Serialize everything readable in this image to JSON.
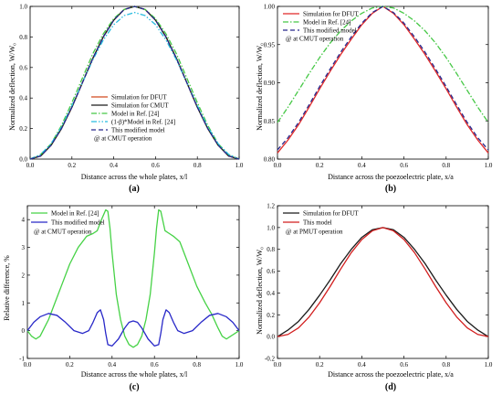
{
  "chart_data": [
    {
      "panel": "(a)",
      "type": "line",
      "xlabel": "Distance across the whole plates, x/l",
      "ylabel": "Normalized deflection, W/W₀",
      "xlim": [
        0.0,
        1.0
      ],
      "ylim": [
        0.0,
        1.0
      ],
      "xticks": [
        "0.0",
        "0.2",
        "0.4",
        "0.6",
        "0.8",
        "1.0"
      ],
      "yticks": [
        "0.0",
        "0.2",
        "0.4",
        "0.6",
        "0.8",
        "1.0"
      ],
      "legend_position": "bottom-center",
      "legend_note": "@ at CMUT operation",
      "series": [
        {
          "name": "Simulation for DFUT",
          "color": "#d24a1e",
          "dash": "solid",
          "x": [
            0,
            0.05,
            0.1,
            0.15,
            0.2,
            0.25,
            0.3,
            0.35,
            0.4,
            0.45,
            0.5,
            0.55,
            0.6,
            0.65,
            0.7,
            0.75,
            0.8,
            0.85,
            0.9,
            0.95,
            1.0
          ],
          "y": [
            0,
            0.02,
            0.09,
            0.2,
            0.34,
            0.5,
            0.66,
            0.8,
            0.91,
            0.98,
            1.0,
            0.98,
            0.91,
            0.8,
            0.66,
            0.5,
            0.34,
            0.2,
            0.09,
            0.02,
            0
          ]
        },
        {
          "name": "Simulation for CMUT",
          "color": "#1a1a1a",
          "dash": "solid",
          "x": [
            0,
            0.05,
            0.1,
            0.15,
            0.2,
            0.25,
            0.3,
            0.35,
            0.4,
            0.45,
            0.5,
            0.55,
            0.6,
            0.65,
            0.7,
            0.75,
            0.8,
            0.85,
            0.9,
            0.95,
            1.0
          ],
          "y": [
            0,
            0.02,
            0.09,
            0.2,
            0.34,
            0.5,
            0.66,
            0.8,
            0.91,
            0.98,
            1.0,
            0.98,
            0.91,
            0.8,
            0.66,
            0.5,
            0.34,
            0.2,
            0.09,
            0.02,
            0
          ]
        },
        {
          "name": "Model in Ref. [24]",
          "color": "#46c846",
          "dash": "dashdot",
          "x": [
            0,
            0.05,
            0.1,
            0.15,
            0.2,
            0.25,
            0.3,
            0.35,
            0.4,
            0.45,
            0.5,
            0.55,
            0.6,
            0.65,
            0.7,
            0.75,
            0.8,
            0.85,
            0.9,
            0.95,
            1.0
          ],
          "y": [
            0,
            0.03,
            0.1,
            0.22,
            0.37,
            0.53,
            0.69,
            0.82,
            0.92,
            0.98,
            1.0,
            0.98,
            0.92,
            0.82,
            0.69,
            0.53,
            0.37,
            0.22,
            0.1,
            0.03,
            0
          ]
        },
        {
          "name": "(1-β)*Model in Ref. [24]",
          "color": "#28bce0",
          "dash": "dashdotdot",
          "x": [
            0,
            0.05,
            0.1,
            0.15,
            0.2,
            0.25,
            0.3,
            0.35,
            0.4,
            0.45,
            0.5,
            0.55,
            0.6,
            0.65,
            0.7,
            0.75,
            0.8,
            0.85,
            0.9,
            0.95,
            1.0
          ],
          "y": [
            0,
            0.03,
            0.1,
            0.21,
            0.35,
            0.5,
            0.65,
            0.78,
            0.88,
            0.94,
            0.96,
            0.94,
            0.88,
            0.78,
            0.65,
            0.5,
            0.35,
            0.21,
            0.1,
            0.03,
            0
          ]
        },
        {
          "name": "This modified model",
          "color": "#28288c",
          "dash": "dash",
          "x": [
            0,
            0.05,
            0.1,
            0.15,
            0.2,
            0.25,
            0.3,
            0.35,
            0.4,
            0.45,
            0.5,
            0.55,
            0.6,
            0.65,
            0.7,
            0.75,
            0.8,
            0.85,
            0.9,
            0.95,
            1.0
          ],
          "y": [
            0,
            0.02,
            0.09,
            0.2,
            0.34,
            0.5,
            0.66,
            0.8,
            0.91,
            0.98,
            1.0,
            0.98,
            0.91,
            0.8,
            0.66,
            0.5,
            0.34,
            0.2,
            0.09,
            0.02,
            0
          ]
        }
      ]
    },
    {
      "panel": "(b)",
      "type": "line",
      "xlabel": "Distance across the poezoelectric plate, x/a",
      "ylabel": "Normalized deflection, W/W₀",
      "xlim": [
        0.0,
        1.0
      ],
      "ylim": [
        0.8,
        1.0
      ],
      "xticks": [
        "0.0",
        "0.2",
        "0.4",
        "0.6",
        "0.8",
        "1.0"
      ],
      "yticks": [
        "0.80",
        "0.85",
        "0.90",
        "0.95",
        "1.00"
      ],
      "legend_position": "top-left",
      "legend_note": "@ at CMUT operation",
      "series": [
        {
          "name": "Simulation for DFUT",
          "color": "#e02828",
          "dash": "solid",
          "x": [
            0,
            0.05,
            0.1,
            0.15,
            0.2,
            0.25,
            0.3,
            0.35,
            0.4,
            0.45,
            0.5,
            0.55,
            0.6,
            0.65,
            0.7,
            0.75,
            0.8,
            0.85,
            0.9,
            0.95,
            1.0
          ],
          "y": [
            0.808,
            0.825,
            0.845,
            0.868,
            0.892,
            0.915,
            0.937,
            0.957,
            0.976,
            0.991,
            1.0,
            0.991,
            0.976,
            0.957,
            0.937,
            0.915,
            0.892,
            0.868,
            0.845,
            0.825,
            0.808
          ]
        },
        {
          "name": "Model in Ref. [24]",
          "color": "#46c846",
          "dash": "dashdot",
          "x": [
            0,
            0.05,
            0.1,
            0.15,
            0.2,
            0.25,
            0.3,
            0.35,
            0.4,
            0.45,
            0.5,
            0.55,
            0.6,
            0.65,
            0.7,
            0.75,
            0.8,
            0.85,
            0.9,
            0.95,
            1.0
          ],
          "y": [
            0.848,
            0.868,
            0.89,
            0.912,
            0.933,
            0.952,
            0.968,
            0.981,
            0.991,
            0.998,
            1.0,
            0.998,
            0.991,
            0.981,
            0.968,
            0.952,
            0.933,
            0.912,
            0.89,
            0.868,
            0.848
          ]
        },
        {
          "name": "This modified model",
          "color": "#28288c",
          "dash": "dash",
          "x": [
            0,
            0.05,
            0.1,
            0.15,
            0.2,
            0.25,
            0.3,
            0.35,
            0.4,
            0.45,
            0.5,
            0.55,
            0.6,
            0.65,
            0.7,
            0.75,
            0.8,
            0.85,
            0.9,
            0.95,
            1.0
          ],
          "y": [
            0.812,
            0.828,
            0.848,
            0.871,
            0.895,
            0.918,
            0.94,
            0.96,
            0.978,
            0.992,
            1.0,
            0.992,
            0.978,
            0.96,
            0.94,
            0.918,
            0.895,
            0.871,
            0.848,
            0.828,
            0.812
          ]
        }
      ]
    },
    {
      "panel": "(c)",
      "type": "line",
      "xlabel": "Distance across the whole plates, x/l",
      "ylabel": "Relative difference, %",
      "xlim": [
        0.0,
        1.0
      ],
      "ylim": [
        -1,
        4.5
      ],
      "xticks": [
        "0.0",
        "0.2",
        "0.4",
        "0.6",
        "0.8",
        "1.0"
      ],
      "yticks": [
        "-1",
        "0",
        "1",
        "2",
        "3",
        "4"
      ],
      "legend_position": "top-left",
      "legend_note": "@ at CMUT operation",
      "series": [
        {
          "name": "Model in Ref. [24]",
          "color": "#46d246",
          "dash": "solid",
          "x": [
            0,
            0.02,
            0.04,
            0.06,
            0.08,
            0.1,
            0.13,
            0.16,
            0.2,
            0.24,
            0.28,
            0.31,
            0.33,
            0.35,
            0.37,
            0.38,
            0.39,
            0.4,
            0.42,
            0.44,
            0.46,
            0.48,
            0.5,
            0.52,
            0.54,
            0.56,
            0.58,
            0.6,
            0.61,
            0.62,
            0.63,
            0.65,
            0.67,
            0.69,
            0.72,
            0.76,
            0.8,
            0.84,
            0.87,
            0.9,
            0.92,
            0.94,
            0.96,
            0.98,
            1.0
          ],
          "y": [
            0,
            -0.2,
            -0.3,
            -0.2,
            0.1,
            0.4,
            1.0,
            1.6,
            2.4,
            3.0,
            3.4,
            3.5,
            3.6,
            4.0,
            4.35,
            4.3,
            3.7,
            2.8,
            1.3,
            0.4,
            -0.2,
            -0.5,
            -0.6,
            -0.5,
            -0.2,
            0.4,
            1.3,
            2.8,
            3.7,
            4.35,
            4.3,
            3.6,
            3.5,
            3.4,
            3.2,
            2.4,
            1.6,
            1.0,
            0.6,
            0.1,
            -0.2,
            -0.3,
            -0.2,
            -0.1,
            0
          ]
        },
        {
          "name": "This modified model",
          "color": "#2828c8",
          "dash": "solid",
          "x": [
            0,
            0.03,
            0.06,
            0.1,
            0.14,
            0.18,
            0.22,
            0.26,
            0.29,
            0.31,
            0.33,
            0.345,
            0.36,
            0.37,
            0.38,
            0.4,
            0.43,
            0.46,
            0.48,
            0.5,
            0.52,
            0.54,
            0.57,
            0.6,
            0.62,
            0.63,
            0.64,
            0.655,
            0.67,
            0.69,
            0.71,
            0.74,
            0.78,
            0.82,
            0.86,
            0.9,
            0.94,
            0.97,
            1.0
          ],
          "y": [
            0,
            0.3,
            0.5,
            0.62,
            0.55,
            0.3,
            0.0,
            -0.1,
            0.0,
            0.3,
            0.65,
            0.75,
            0.4,
            -0.1,
            -0.5,
            -0.55,
            -0.3,
            0.1,
            0.3,
            0.35,
            0.3,
            0.1,
            -0.3,
            -0.55,
            -0.5,
            -0.1,
            0.4,
            0.75,
            0.65,
            0.3,
            0.0,
            -0.1,
            0.0,
            0.3,
            0.55,
            0.62,
            0.5,
            0.3,
            0
          ]
        }
      ]
    },
    {
      "panel": "(d)",
      "type": "line",
      "xlabel": "Distance across the poezoelectric plate, x/a",
      "ylabel": "Normalized deflection, W/W₀",
      "xlim": [
        0.0,
        1.0
      ],
      "ylim": [
        -0.2,
        1.2
      ],
      "xticks": [
        "0.0",
        "0.2",
        "0.4",
        "0.6",
        "0.8",
        "1.0"
      ],
      "yticks": [
        "-0.2",
        "0.0",
        "0.2",
        "0.4",
        "0.6",
        "0.8",
        "1.0",
        "1.2"
      ],
      "legend_position": "top-left",
      "legend_note": "@ at PMUT operation",
      "series": [
        {
          "name": "Simulation for DFUT",
          "color": "#1a1a1a",
          "dash": "solid",
          "x": [
            0,
            0.05,
            0.1,
            0.15,
            0.2,
            0.25,
            0.3,
            0.35,
            0.4,
            0.45,
            0.5,
            0.55,
            0.6,
            0.65,
            0.7,
            0.75,
            0.8,
            0.85,
            0.9,
            0.95,
            1.0
          ],
          "y": [
            0,
            0.06,
            0.14,
            0.25,
            0.38,
            0.52,
            0.67,
            0.8,
            0.91,
            0.98,
            1.0,
            0.98,
            0.91,
            0.8,
            0.67,
            0.52,
            0.38,
            0.25,
            0.14,
            0.06,
            0
          ]
        },
        {
          "name": "This model",
          "color": "#d21e1e",
          "dash": "solid",
          "x": [
            0,
            0.05,
            0.1,
            0.15,
            0.2,
            0.25,
            0.3,
            0.35,
            0.4,
            0.45,
            0.5,
            0.55,
            0.6,
            0.65,
            0.7,
            0.75,
            0.8,
            0.85,
            0.9,
            0.95,
            1.0
          ],
          "y": [
            0,
            0.02,
            0.08,
            0.18,
            0.31,
            0.46,
            0.62,
            0.77,
            0.89,
            0.97,
            1.0,
            0.97,
            0.89,
            0.77,
            0.62,
            0.46,
            0.31,
            0.18,
            0.08,
            0.02,
            0
          ]
        }
      ]
    }
  ]
}
